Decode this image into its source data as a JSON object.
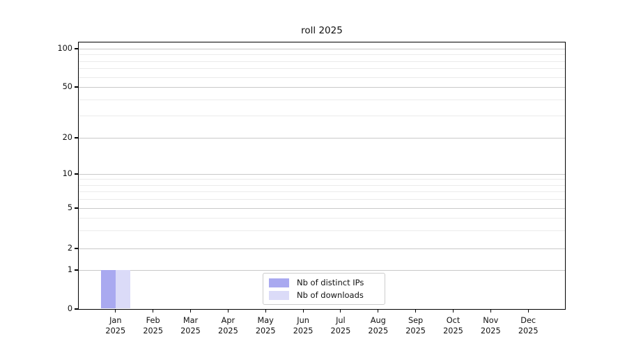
{
  "chart_data": {
    "type": "bar",
    "title": "roll 2025",
    "xlabel": "",
    "ylabel": "",
    "categories": [
      "Jan 2025",
      "Feb 2025",
      "Mar 2025",
      "Apr 2025",
      "May 2025",
      "Jun 2025",
      "Jul 2025",
      "Aug 2025",
      "Sep 2025",
      "Oct 2025",
      "Nov 2025",
      "Dec 2025"
    ],
    "series": [
      {
        "name": "Nb of distinct IPs",
        "color": "#a9a9f0",
        "values": [
          1,
          0,
          0,
          0,
          0,
          0,
          0,
          0,
          0,
          0,
          0,
          0
        ]
      },
      {
        "name": "Nb of downloads",
        "color": "#dbdbf8",
        "values": [
          1,
          0,
          0,
          0,
          0,
          0,
          0,
          0,
          0,
          0,
          0,
          0
        ]
      }
    ],
    "y_axis": {
      "scale": "log (with 0 baseline)",
      "ylim": [
        0,
        100
      ],
      "major_ticks": [
        100,
        50,
        20,
        10,
        5,
        2,
        1,
        0
      ],
      "minor_gridlines": [
        90,
        80,
        70,
        60,
        40,
        30,
        9,
        8,
        7,
        6,
        4,
        3
      ]
    },
    "grid": true,
    "legend_position": "inside-bottom-center"
  },
  "colors": {
    "background": "#ffffff",
    "axis": "#000000",
    "major_grid": "#c9c9c9",
    "minor_grid": "#ebebeb",
    "bar_distinct_ips": "#a9a9f0",
    "bar_downloads": "#dbdbf8",
    "legend_border": "#cccccc"
  }
}
